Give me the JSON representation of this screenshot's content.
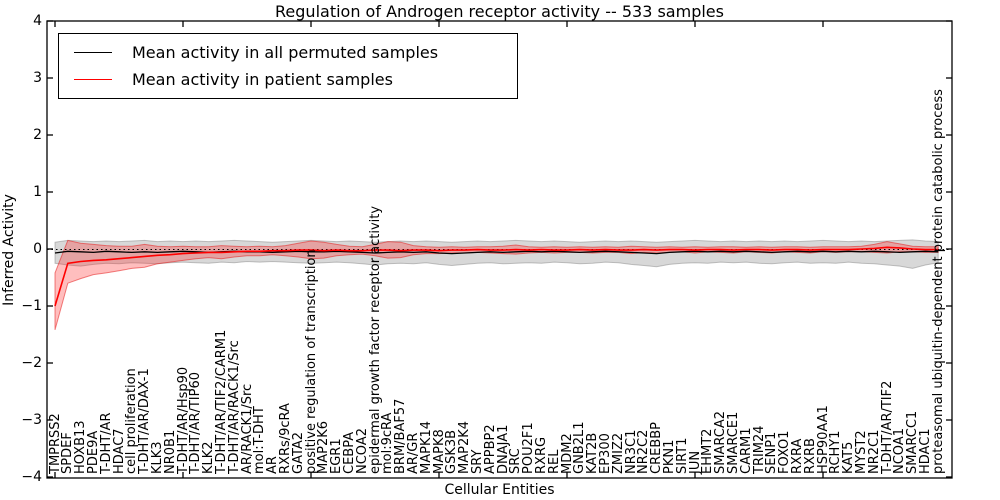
{
  "title": "Regulation of Androgen receptor activity -- 533 samples",
  "legend": {
    "items": [
      {
        "label": "Mean activity in all permuted samples",
        "color": "#000000"
      },
      {
        "label": "Mean activity in patient samples",
        "color": "#ff0000"
      }
    ]
  },
  "chart_data": {
    "type": "line",
    "title": "Regulation of Androgen receptor activity -- 533 samples",
    "xlabel": "Cellular Entities",
    "ylabel": "Inferred Activity",
    "ylim": [
      -4,
      4
    ],
    "grid": false,
    "legend_position": "upper left",
    "zero_line": {
      "style": "dotted",
      "color": "#000000",
      "value": 0
    },
    "yticks": [
      4,
      3,
      2,
      1,
      0,
      -1,
      -2,
      -3,
      -4
    ],
    "ytick_labels": [
      "4",
      "3",
      "2",
      "1",
      "0",
      "−1",
      "−2",
      "−3",
      "−4"
    ],
    "categories": [
      "TMPRSS2",
      "SPDEF",
      "HOXB13",
      "PDE9A",
      "T-DHT/AR",
      "HDAC7",
      "cell proliferation",
      "T-DHT/AR/DAX-1",
      "KLK3",
      "NR0B1",
      "T-DHT/AR/Hsp90",
      "T-DHT/AR/TIP60",
      "KLK2",
      "T-DHT/AR/TIF2/CARM1",
      "T-DHT/AR/RACK1/Src",
      "AR/RACK1/Src",
      "mol:T-DHT",
      "AR",
      "RXRs/9cRA",
      "GATA2",
      "positive regulation of transcription",
      "MAP2K6",
      "EGR1",
      "CEBPA",
      "NCOA2",
      "epidermal growth factor receptor activity",
      "mol:9cRA",
      "BRM/BAF57",
      "AR/GR",
      "MAPK14",
      "MAPK8",
      "GSK3B",
      "MAP2K4",
      "SRY",
      "APPBP2",
      "DNAJA1",
      "SRC",
      "POU2F1",
      "RXRG",
      "REL",
      "MDM2",
      "GNB2L1",
      "KAT2B",
      "EP300",
      "ZMIZ2",
      "NR3C1",
      "NR2C2",
      "CREBBP",
      "PKN1",
      "SIRT1",
      "JUN",
      "EHMT2",
      "SMARCA2",
      "SMARCE1",
      "CARM1",
      "TRIM24",
      "SENP1",
      "FOXO1",
      "RXRA",
      "RXRB",
      "HSP90AA1",
      "RCHY1",
      "KAT5",
      "MYST2",
      "NR2C1",
      "T-DHT/AR/TIF2",
      "NCOA1",
      "SMARCC1",
      "HDAC1",
      "proteasomal ubiquitin-dependent protein catabolic process"
    ],
    "series": [
      {
        "name": "Mean activity in all permuted samples",
        "color": "#000000",
        "band_color": "rgba(125,125,125,0.30)",
        "band_edge": "rgba(125,125,125,0.45)",
        "values": [
          -0.07,
          -0.04,
          -0.05,
          -0.06,
          -0.04,
          -0.05,
          -0.06,
          -0.05,
          -0.06,
          -0.05,
          -0.04,
          -0.05,
          -0.06,
          -0.05,
          -0.04,
          -0.05,
          -0.05,
          -0.06,
          -0.05,
          -0.04,
          -0.05,
          -0.05,
          -0.04,
          -0.05,
          -0.06,
          -0.07,
          -0.06,
          -0.05,
          -0.06,
          -0.05,
          -0.07,
          -0.08,
          -0.07,
          -0.06,
          -0.05,
          -0.06,
          -0.05,
          -0.04,
          -0.05,
          -0.04,
          -0.05,
          -0.06,
          -0.05,
          -0.04,
          -0.05,
          -0.06,
          -0.07,
          -0.08,
          -0.06,
          -0.05,
          -0.04,
          -0.05,
          -0.04,
          -0.05,
          -0.04,
          -0.05,
          -0.06,
          -0.05,
          -0.04,
          -0.05,
          -0.04,
          -0.05,
          -0.04,
          -0.05,
          -0.04,
          -0.05,
          -0.06,
          -0.05,
          -0.04,
          -0.05
        ],
        "band_upper": [
          0.12,
          0.15,
          0.14,
          0.13,
          0.14,
          0.13,
          0.14,
          0.15,
          0.13,
          0.14,
          0.13,
          0.14,
          0.13,
          0.14,
          0.15,
          0.14,
          0.13,
          0.12,
          0.13,
          0.14,
          0.15,
          0.14,
          0.13,
          0.14,
          0.13,
          0.12,
          0.13,
          0.14,
          0.13,
          0.14,
          0.13,
          0.12,
          0.13,
          0.14,
          0.13,
          0.14,
          0.15,
          0.14,
          0.13,
          0.14,
          0.13,
          0.12,
          0.13,
          0.14,
          0.13,
          0.14,
          0.13,
          0.12,
          0.13,
          0.14,
          0.15,
          0.14,
          0.13,
          0.14,
          0.13,
          0.14,
          0.13,
          0.14,
          0.13,
          0.14,
          0.15,
          0.14,
          0.13,
          0.14,
          0.13,
          0.14,
          0.15,
          0.16,
          0.14,
          0.13
        ],
        "band_lower": [
          -0.25,
          -0.28,
          -0.3,
          -0.27,
          -0.25,
          -0.26,
          -0.24,
          -0.25,
          -0.26,
          -0.24,
          -0.23,
          -0.24,
          -0.25,
          -0.23,
          -0.24,
          -0.22,
          -0.23,
          -0.22,
          -0.23,
          -0.24,
          -0.25,
          -0.24,
          -0.23,
          -0.24,
          -0.26,
          -0.28,
          -0.26,
          -0.25,
          -0.26,
          -0.24,
          -0.27,
          -0.29,
          -0.27,
          -0.25,
          -0.24,
          -0.26,
          -0.25,
          -0.24,
          -0.25,
          -0.23,
          -0.24,
          -0.26,
          -0.25,
          -0.23,
          -0.24,
          -0.27,
          -0.29,
          -0.31,
          -0.27,
          -0.25,
          -0.24,
          -0.25,
          -0.23,
          -0.24,
          -0.23,
          -0.25,
          -0.26,
          -0.24,
          -0.23,
          -0.25,
          -0.24,
          -0.25,
          -0.23,
          -0.25,
          -0.26,
          -0.28,
          -0.3,
          -0.34,
          -0.28,
          -0.24
        ]
      },
      {
        "name": "Mean activity in patient samples",
        "color": "#ff0000",
        "band_color": "rgba(255,40,40,0.30)",
        "band_edge": "rgba(230,30,30,0.55)",
        "values": [
          -1.0,
          -0.25,
          -0.22,
          -0.2,
          -0.19,
          -0.17,
          -0.15,
          -0.13,
          -0.11,
          -0.1,
          -0.08,
          -0.07,
          -0.06,
          -0.06,
          -0.05,
          -0.04,
          -0.04,
          -0.03,
          -0.03,
          -0.02,
          -0.02,
          -0.03,
          -0.02,
          -0.03,
          -0.03,
          -0.02,
          -0.02,
          -0.03,
          -0.02,
          -0.02,
          -0.03,
          -0.02,
          -0.02,
          -0.01,
          -0.02,
          -0.02,
          -0.01,
          -0.02,
          -0.01,
          -0.02,
          -0.02,
          -0.01,
          -0.02,
          -0.01,
          -0.02,
          -0.02,
          -0.01,
          -0.02,
          -0.01,
          -0.01,
          -0.02,
          -0.01,
          -0.01,
          -0.02,
          -0.01,
          -0.01,
          -0.02,
          -0.01,
          -0.01,
          -0.02,
          -0.01,
          -0.01,
          -0.01,
          0.0,
          0.01,
          0.03,
          0.02,
          0.0,
          -0.01,
          -0.01
        ],
        "band_upper": [
          -0.42,
          0.15,
          0.1,
          0.08,
          0.06,
          0.05,
          0.05,
          0.08,
          0.05,
          0.04,
          0.05,
          0.04,
          0.04,
          0.06,
          0.05,
          0.04,
          0.05,
          0.04,
          0.06,
          0.1,
          0.14,
          0.12,
          0.08,
          0.05,
          0.04,
          0.08,
          0.13,
          0.12,
          0.06,
          0.04,
          0.03,
          0.04,
          0.03,
          0.04,
          0.04,
          0.05,
          0.07,
          0.04,
          0.03,
          0.04,
          0.03,
          0.04,
          0.03,
          0.04,
          0.03,
          0.05,
          0.04,
          0.03,
          0.04,
          0.03,
          0.04,
          0.03,
          0.04,
          0.04,
          0.03,
          0.04,
          0.03,
          0.04,
          0.04,
          0.03,
          0.04,
          0.04,
          0.04,
          0.05,
          0.08,
          0.13,
          0.09,
          0.05,
          0.04,
          0.04
        ],
        "band_lower": [
          -1.42,
          -0.6,
          -0.52,
          -0.45,
          -0.42,
          -0.38,
          -0.34,
          -0.32,
          -0.26,
          -0.23,
          -0.2,
          -0.17,
          -0.15,
          -0.17,
          -0.14,
          -0.12,
          -0.12,
          -0.1,
          -0.12,
          -0.14,
          -0.17,
          -0.16,
          -0.12,
          -0.1,
          -0.09,
          -0.12,
          -0.16,
          -0.15,
          -0.1,
          -0.08,
          -0.08,
          -0.07,
          -0.07,
          -0.06,
          -0.07,
          -0.08,
          -0.09,
          -0.07,
          -0.06,
          -0.07,
          -0.06,
          -0.06,
          -0.07,
          -0.06,
          -0.06,
          -0.08,
          -0.06,
          -0.07,
          -0.06,
          -0.05,
          -0.07,
          -0.05,
          -0.06,
          -0.07,
          -0.05,
          -0.06,
          -0.07,
          -0.05,
          -0.06,
          -0.07,
          -0.05,
          -0.06,
          -0.05,
          -0.05,
          -0.06,
          -0.07,
          -0.05,
          -0.05,
          -0.06,
          -0.06
        ]
      }
    ]
  }
}
